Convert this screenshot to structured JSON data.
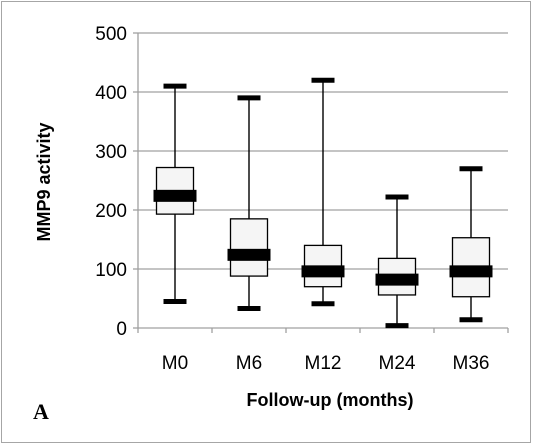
{
  "chart_data": {
    "type": "box",
    "panel_label": "A",
    "xlabel": "Follow-up (months)",
    "ylabel": "MMP9 activity",
    "ylim": [
      0,
      500
    ],
    "yticks": [
      "0",
      "100",
      "200",
      "300",
      "400",
      "500"
    ],
    "ytick_values": [
      0,
      100,
      200,
      300,
      400,
      500
    ],
    "categories": [
      "M0",
      "M6",
      "M12",
      "M24",
      "M36"
    ],
    "boxes": [
      {
        "category": "M0",
        "min": 45,
        "q1": 193,
        "median": 224,
        "q3": 272,
        "max": 410
      },
      {
        "category": "M6",
        "min": 33,
        "q1": 88,
        "median": 124,
        "q3": 185,
        "max": 390
      },
      {
        "category": "M12",
        "min": 41,
        "q1": 70,
        "median": 96,
        "q3": 140,
        "max": 420
      },
      {
        "category": "M24",
        "min": 4,
        "q1": 56,
        "median": 82,
        "q3": 118,
        "max": 222
      },
      {
        "category": "M36",
        "min": 14,
        "q1": 53,
        "median": 96,
        "q3": 153,
        "max": 270
      }
    ],
    "grid": true,
    "colors": {
      "box_fill": "#f5f5f5",
      "box_stroke": "#000000",
      "median": "#000000",
      "whisker": "#000000",
      "gridline": "#a0a0a0",
      "frame": "#a6a6a6"
    }
  }
}
